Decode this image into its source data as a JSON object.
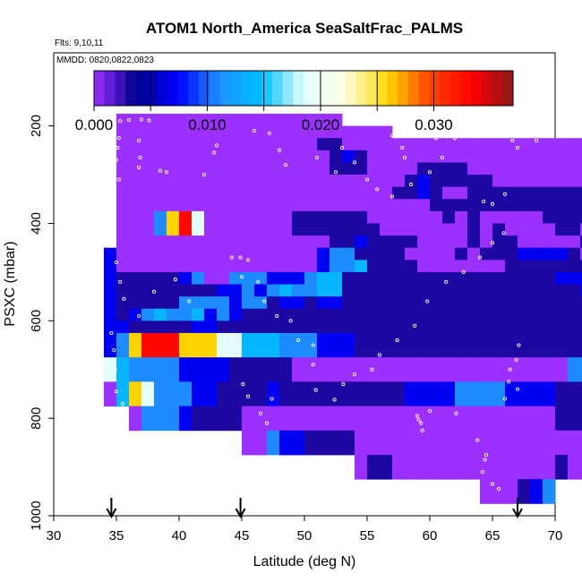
{
  "chart_data": {
    "type": "heatmap",
    "title": "ATOM1 North_America SeaSaltFrac_PALMS",
    "flights_note": "Flts: 9,10,11",
    "dates_note": "MMDD: 0820,0822,0823",
    "xlabel": "Latitude (deg N)",
    "ylabel": "PSXC (mbar)",
    "xlim": [
      30,
      70
    ],
    "ylim": [
      1000,
      50
    ],
    "y_reversed": true,
    "x_ticks": [
      30,
      35,
      40,
      45,
      50,
      55,
      60,
      65,
      70
    ],
    "y_ticks": [
      200,
      400,
      600,
      800,
      1000
    ],
    "colorbar": {
      "range": [
        0,
        0.037
      ],
      "tick_values": [
        0.0,
        0.01,
        0.02,
        0.03
      ],
      "tick_labels": [
        "0.000",
        "0.010",
        "0.020",
        "0.030"
      ],
      "major_marks": [
        0.005,
        0.01,
        0.015,
        0.02,
        0.025,
        0.03
      ],
      "colors": [
        "#9B30FF",
        "#00008B",
        "#0000FF",
        "#1E90FF",
        "#00BFFF",
        "#E0FFFF",
        "#FFFFE0",
        "#FFD700",
        "#FF4500",
        "#FF0000",
        "#8B1A1A"
      ]
    },
    "arrow_latitudes": [
      34.6,
      44.9,
      67.0
    ],
    "cell_size": {
      "dlat": 1.0,
      "dp": 25
    },
    "rows": [
      {
        "p": 175,
        "lat0": 35,
        "vals": "pppppppppppppppppp"
      },
      {
        "p": 200,
        "lat0": 35,
        "vals": "pppppppppppppppppppppp"
      },
      {
        "p": 225,
        "lat0": 35,
        "vals": "ppppppppppppppppnnppppppppppppppppppppppppppppp"
      },
      {
        "p": 250,
        "lat0": 35,
        "vals": "pppppppppppppppppnbnpppppppppppppppppppppppppppp"
      },
      {
        "p": 275,
        "lat0": 35,
        "vals": "pppppppppppppppppnnnppppnnnnppppppppppppppppppppp"
      },
      {
        "p": 300,
        "lat0": 35,
        "vals": "pppppppppppppppppppppppnbnnnnnpppppppppppppppppppp"
      },
      {
        "p": 325,
        "lat0": 35,
        "vals": "ppppppppppppppppppppppnnbnppnnnnnnnnnnnpppppppp"
      },
      {
        "p": 350,
        "lat0": 35,
        "vals": "pppppppppppppppppppppppppnnnnnnnnnnnnnnnnnnnnnpp"
      },
      {
        "p": 375,
        "lat0": 35,
        "vals": "pppmyrwpppppppnnnnnnppppppnpnpppppnnnnppppppppppp"
      },
      {
        "p": 400,
        "lat0": 35,
        "vals": "pppmyrwpppppppnnnnnnnpppppppnpnppppnnpppppppppppp"
      },
      {
        "p": 425,
        "lat0": 35,
        "vals": "pppppppppppppppppnnbnnnnppppnpnnpppppnnppppppppp"
      },
      {
        "p": 450,
        "lat0": 34,
        "vals": "bppppppppppppppppbmmnnnnppppnpnnnbbbbnppppppppppp"
      },
      {
        "p": 475,
        "lat0": 34,
        "vals": "bppppppppppppppppbmmcnnnnpppppppnnnnnnnnbbnpppppp"
      },
      {
        "p": 500,
        "lat0": 34,
        "vals": "bnnnnnbmppmmmbbbmccnnnnnnnnnnnnnnnnnbbbpppppppppp"
      },
      {
        "p": 525,
        "lat0": 34,
        "vals": "bnnnnnnnnbbmbmcmmccnnnnnnnnnnnnnnnnnnnbbnnppppppp"
      },
      {
        "p": 550,
        "lat0": 34,
        "vals": "bnnnnnmmmmbmmnbbnbbnnnnnnnnnnnnnnnnnnnnnnnnnppppp"
      },
      {
        "p": 575,
        "lat0": 34,
        "vals": "bnbmcmmcbmbnnnnnnnnnnnnnnnnnnnnnnnnnnnnnnnnnnpppp"
      },
      {
        "p": 600,
        "lat0": 34,
        "vals": "bbnnnnnbbnnnnnnnnnnnnnnnnnnnnnnnnnnnnnnnnnnnnpppp"
      },
      {
        "p": 625,
        "lat0": 34,
        "vals": "bmyrrryyywwcccmmmbbbnnnnnnnnnnnnnnnnnnnnnnnnnpppp"
      },
      {
        "p": 650,
        "lat0": 34,
        "vals": "bmyrrryyywwcccmmmbbbnnnnnnnnnnnnnnnnnnnnnnnnnpppp"
      },
      {
        "p": 675,
        "lat0": 34,
        "vals": "wcmmmmbbbbnnnnnppppppppppppppppppppppmmmbbbbnnpp"
      },
      {
        "p": 700,
        "lat0": 34,
        "vals": "wcmmmmbbbbnnnnnppppppppppppppppppppppmmmbbbbnnpp"
      },
      {
        "p": 725,
        "lat0": 34,
        "vals": "pcywmmmbbnnnnbnnnnnnnnnnbbbbmmmmbbbbnnnnnnnnnnp"
      },
      {
        "p": 750,
        "lat0": 34,
        "vals": "pcywmmmbbnnnnbnnnnnnnnnnbbbbmmmmbbbbnnnnnnnnnnp"
      },
      {
        "p": 775,
        "lat0": 36,
        "vals": "pmmmbnnnnpppppppppppppppppppppppppnnnnnnnnnn"
      },
      {
        "p": 800,
        "lat0": 36,
        "vals": "pmmmbnnnnpppppppppppppppppppppppppnnnnnnnnnn"
      },
      {
        "p": 825,
        "lat0": 45,
        "vals": "ppmbbnnnnppppppppppppppppppppppppbnn"
      },
      {
        "p": 850,
        "lat0": 45,
        "vals": "ppmbbnnnnppppppppppppppppppppppppbnn"
      },
      {
        "p": 875,
        "lat0": 54,
        "vals": "pnnpppppppppppppnppb"
      },
      {
        "p": 900,
        "lat0": 54,
        "vals": "pnnpppppppppppppnppb"
      },
      {
        "p": 925,
        "lat0": 64,
        "vals": "pppnbm"
      },
      {
        "p": 950,
        "lat0": 64,
        "vals": "pppnbm"
      }
    ],
    "value_codes": {
      "p": 0.0,
      "n": 0.003,
      "b": 0.007,
      "m": 0.011,
      "c": 0.014,
      "w": 0.019,
      "y": 0.026,
      "r": 0.033
    },
    "flight_track_points": [
      [
        35.3,
        190
      ],
      [
        36.0,
        188
      ],
      [
        37.0,
        187
      ],
      [
        37.6,
        189
      ],
      [
        35.2,
        225
      ],
      [
        35.1,
        245
      ],
      [
        35.0,
        270
      ],
      [
        35.2,
        310
      ],
      [
        36.8,
        230
      ],
      [
        36.9,
        265
      ],
      [
        36.8,
        285
      ],
      [
        38.5,
        292
      ],
      [
        39.0,
        295
      ],
      [
        43.0,
        240
      ],
      [
        42.8,
        255
      ],
      [
        42.0,
        300
      ],
      [
        46.0,
        210
      ],
      [
        47.2,
        215
      ],
      [
        48.0,
        250
      ],
      [
        48.5,
        280
      ],
      [
        51.0,
        265
      ],
      [
        53.0,
        245
      ],
      [
        52.5,
        295
      ],
      [
        54.0,
        275
      ],
      [
        55.0,
        310
      ],
      [
        55.8,
        330
      ],
      [
        57.0,
        220
      ],
      [
        57.8,
        245
      ],
      [
        58.0,
        265
      ],
      [
        60.5,
        225
      ],
      [
        61.3,
        222
      ],
      [
        62.0,
        225
      ],
      [
        61.0,
        265
      ],
      [
        60.0,
        295
      ],
      [
        58.5,
        320
      ],
      [
        57.0,
        345
      ],
      [
        64.3,
        355
      ],
      [
        65.0,
        360
      ],
      [
        66.0,
        340
      ],
      [
        68.5,
        230
      ],
      [
        69.8,
        218
      ],
      [
        67.0,
        245
      ],
      [
        66.6,
        230
      ],
      [
        35.0,
        480
      ],
      [
        35.3,
        520
      ],
      [
        35.6,
        555
      ],
      [
        36.8,
        590
      ],
      [
        38.0,
        540
      ],
      [
        39.7,
        515
      ],
      [
        40.8,
        560
      ],
      [
        44.2,
        470
      ],
      [
        44.9,
        470
      ],
      [
        45.5,
        475
      ],
      [
        45.0,
        510
      ],
      [
        46.3,
        520
      ],
      [
        46.8,
        560
      ],
      [
        47.8,
        590
      ],
      [
        48.9,
        600
      ],
      [
        49.5,
        640
      ],
      [
        50.7,
        650
      ],
      [
        50.7,
        690
      ],
      [
        53.1,
        730
      ],
      [
        54.0,
        710
      ],
      [
        55.4,
        700
      ],
      [
        56.0,
        670
      ],
      [
        57.4,
        640
      ],
      [
        58.8,
        610
      ],
      [
        59.8,
        560
      ],
      [
        61.3,
        520
      ],
      [
        62.7,
        500
      ],
      [
        64.0,
        470
      ],
      [
        65.0,
        440
      ],
      [
        65.9,
        420
      ],
      [
        34.6,
        625
      ],
      [
        34.8,
        660
      ],
      [
        34.9,
        700
      ],
      [
        35.0,
        745
      ],
      [
        35.5,
        770
      ],
      [
        45.1,
        730
      ],
      [
        45.5,
        755
      ],
      [
        46.5,
        790
      ],
      [
        47.0,
        810
      ],
      [
        47.4,
        760
      ],
      [
        50.9,
        742
      ],
      [
        52.4,
        762
      ],
      [
        59.0,
        795
      ],
      [
        59.1,
        803
      ],
      [
        59.3,
        810
      ],
      [
        59.4,
        825
      ],
      [
        60.0,
        785
      ],
      [
        62.1,
        790
      ],
      [
        63.8,
        845
      ],
      [
        64.5,
        875
      ],
      [
        64.4,
        885
      ],
      [
        64.2,
        910
      ],
      [
        65.0,
        935
      ],
      [
        65.5,
        945
      ],
      [
        66.4,
        700
      ],
      [
        66.3,
        725
      ],
      [
        66.0,
        760
      ],
      [
        67.0,
        740
      ],
      [
        66.9,
        680
      ],
      [
        67.1,
        650
      ]
    ]
  }
}
